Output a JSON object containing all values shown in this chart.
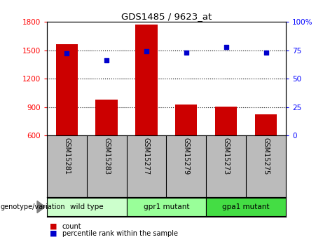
{
  "title": "GDS1485 / 9623_at",
  "categories": [
    "GSM15281",
    "GSM15283",
    "GSM15277",
    "GSM15279",
    "GSM15273",
    "GSM15275"
  ],
  "bar_values": [
    1560,
    980,
    1770,
    930,
    905,
    825
  ],
  "percentile_values": [
    72,
    66,
    74,
    73,
    78,
    73
  ],
  "ylim_left": [
    600,
    1800
  ],
  "ylim_right": [
    0,
    100
  ],
  "yticks_left": [
    600,
    900,
    1200,
    1500,
    1800
  ],
  "yticks_right": [
    0,
    25,
    50,
    75,
    100
  ],
  "bar_color": "#cc0000",
  "dot_color": "#0000cc",
  "gridline_values": [
    900,
    1200,
    1500
  ],
  "groups": [
    {
      "label": "wild type",
      "indices": [
        0,
        1
      ],
      "color": "#ccffcc"
    },
    {
      "label": "gpr1 mutant",
      "indices": [
        2,
        3
      ],
      "color": "#99ff99"
    },
    {
      "label": "gpa1 mutant",
      "indices": [
        4,
        5
      ],
      "color": "#44dd44"
    }
  ],
  "legend_items": [
    {
      "label": "count",
      "color": "#cc0000"
    },
    {
      "label": "percentile rank within the sample",
      "color": "#0000cc"
    }
  ],
  "genotype_label": "genotype/variation",
  "bg_color_tick": "#bbbbbb",
  "fig_bg": "#ffffff"
}
